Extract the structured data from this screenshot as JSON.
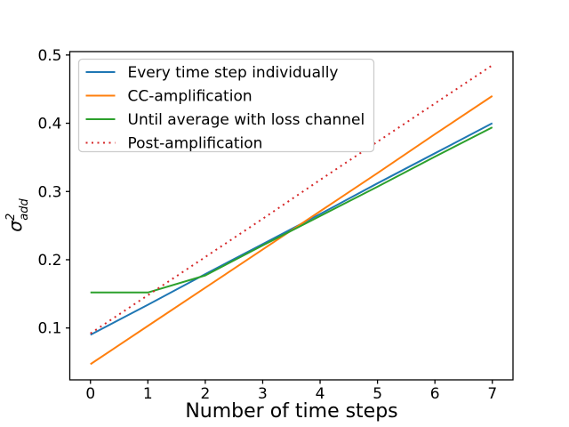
{
  "figure": {
    "background": "#ffffff",
    "ylabel_parts": {
      "base": "σ",
      "sup": "2",
      "sub": "add"
    }
  },
  "chart_data": {
    "type": "line",
    "title": "",
    "xlabel": "Number of time steps",
    "ylabel": "σ²_add",
    "x": [
      0,
      1,
      2,
      3,
      4,
      5,
      6,
      7
    ],
    "xticks": [
      0,
      1,
      2,
      3,
      4,
      5,
      6,
      7
    ],
    "xticklabels": [
      "0",
      "1",
      "2",
      "3",
      "4",
      "5",
      "6",
      "7"
    ],
    "yticks": [
      0.1,
      0.2,
      0.3,
      0.4,
      0.5
    ],
    "yticklabels": [
      "0.1",
      "0.2",
      "0.3",
      "0.4",
      "0.5"
    ],
    "xlim": [
      -0.36,
      7.36
    ],
    "ylim": [
      0.024,
      0.505
    ],
    "grid": false,
    "legend_position": "upper left",
    "series": [
      {
        "name": "Every time step individually",
        "color": "#1f77b4",
        "linestyle": "solid",
        "values": [
          0.09,
          0.134,
          0.179,
          0.223,
          0.267,
          0.312,
          0.356,
          0.4
        ]
      },
      {
        "name": "CC-amplification",
        "color": "#ff7f0e",
        "linestyle": "solid",
        "values": [
          0.047,
          0.103,
          0.159,
          0.215,
          0.271,
          0.327,
          0.384,
          0.44
        ]
      },
      {
        "name": "Until average with loss channel",
        "color": "#2ca02c",
        "linestyle": "solid",
        "values": [
          0.152,
          0.152,
          0.177,
          0.221,
          0.264,
          0.307,
          0.351,
          0.394
        ]
      },
      {
        "name": "Post-amplification",
        "color": "#d62728",
        "linestyle": "dotted",
        "values": [
          0.092,
          0.148,
          0.204,
          0.26,
          0.317,
          0.373,
          0.429,
          0.485
        ]
      }
    ],
    "axis_color": "#000000",
    "legend_border_color": "#cccccc",
    "legend_bg_color": "#ffffff"
  }
}
